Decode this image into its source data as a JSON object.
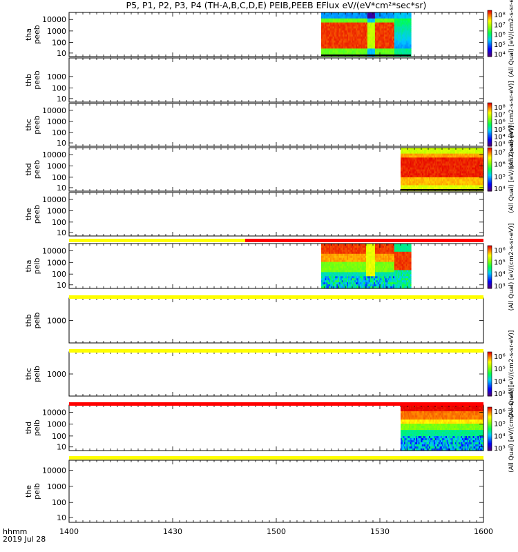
{
  "chart_data": {
    "type": "heatmap",
    "title": "P5, P1, P2, P3, P4 (TH-A,B,C,D,E) PEIB,PEEB EFlux eV/(eV*cm²*sec*sr)",
    "xlabel": "hhmm",
    "xsublabel": "2019 Jul 28",
    "x_ticks": [
      "1400",
      "1430",
      "1500",
      "1530",
      "1600"
    ],
    "x_range_minutes": [
      0,
      120
    ],
    "panels": [
      {
        "id": "tha-peeb",
        "label1": "tha",
        "label2": "peeb",
        "yticks": [
          "10",
          "100",
          "1000",
          "10000"
        ],
        "data_start_min": 73,
        "data_end_min": 99,
        "kind": "electron-a",
        "colorbar": {
          "ticks": [
            "10⁸",
            "10⁷",
            "10⁶",
            "10⁵",
            "10⁴"
          ],
          "label": "(All Qual) [eV/(cm2-s-sr-eV)]"
        }
      },
      {
        "id": "thb-peeb",
        "label1": "thb",
        "label2": "peeb",
        "yticks": [
          "10",
          "100",
          "1000"
        ],
        "data_start_min": null,
        "data_end_min": null,
        "kind": "empty",
        "colorbar": null
      },
      {
        "id": "thc-peeb",
        "label1": "thc",
        "label2": "peeb",
        "yticks": [
          "10",
          "100",
          "1000",
          "10000"
        ],
        "data_start_min": null,
        "data_end_min": null,
        "kind": "empty",
        "colorbar": {
          "ticks": [
            "10⁸",
            "10⁷",
            "10⁶",
            "10⁵",
            "10⁴",
            "10³"
          ],
          "label": "(All Qual) [eV/(cm2-s-sr-eV)]"
        }
      },
      {
        "id": "thd-peeb",
        "label1": "thd",
        "label2": "peeb",
        "yticks": [
          "10",
          "100",
          "1000",
          "10000"
        ],
        "data_start_min": 96,
        "data_end_min": 120,
        "kind": "electron-d",
        "colorbar": {
          "ticks": [
            "10⁷",
            "10⁶",
            "10⁵",
            "10⁴"
          ],
          "label": "(All Qual) [eV/(cm2-s-sr-eV)]"
        }
      },
      {
        "id": "the-peeb",
        "label1": "the",
        "label2": "peeb",
        "yticks": [
          "10",
          "100",
          "1000",
          "10000"
        ],
        "data_start_min": null,
        "data_end_min": null,
        "kind": "empty",
        "colorbar": null
      },
      {
        "id": "tha-peib",
        "label1": "tha",
        "label2": "peib",
        "yticks": [
          "10",
          "100",
          "1000",
          "10000"
        ],
        "data_start_min": 73,
        "data_end_min": 99,
        "kind": "ion-a",
        "colorbar": {
          "ticks": [
            "10⁶",
            "10⁵",
            "10⁴",
            "10³"
          ],
          "label": "(All Qual) [eV/(cm2-s-sr-eV)]"
        }
      },
      {
        "id": "thb-peib",
        "label1": "thb",
        "label2": "peib",
        "yticks": [
          "1000"
        ],
        "data_start_min": null,
        "data_end_min": null,
        "kind": "empty",
        "colorbar": null
      },
      {
        "id": "thc-peib",
        "label1": "thc",
        "label2": "peib",
        "yticks": [
          "1000"
        ],
        "data_start_min": null,
        "data_end_min": null,
        "kind": "empty",
        "colorbar": {
          "ticks": [
            "10⁶",
            "10⁵",
            "10⁴",
            "10³"
          ],
          "label": "(All Qual) [eV/(cm2-s-sr-eV)]"
        }
      },
      {
        "id": "thd-peib",
        "label1": "thd",
        "label2": "peib",
        "yticks": [
          "10",
          "100",
          "1000",
          "10000"
        ],
        "data_start_min": 96,
        "data_end_min": 120,
        "kind": "ion-d",
        "colorbar": {
          "ticks": [
            "10⁶",
            "10⁵",
            "10⁴",
            "10³"
          ],
          "label": "(All Qual) [eV/(cm2-s-sr-eV)]"
        }
      },
      {
        "id": "the-peib",
        "label1": "the",
        "label2": "peib",
        "yticks": [
          "10",
          "100",
          "1000",
          "10000"
        ],
        "data_start_min": null,
        "data_end_min": null,
        "kind": "empty",
        "colorbar": null
      }
    ],
    "status_bars": [
      {
        "after_panel": 4,
        "segments": [
          {
            "from": 0,
            "to": 51,
            "color": "#ffff00"
          },
          {
            "from": 51,
            "to": 120,
            "color": "#ff0000"
          }
        ]
      },
      {
        "after_panel": 5,
        "segments": [
          {
            "from": 0,
            "to": 120,
            "color": "#ffff00"
          }
        ]
      },
      {
        "after_panel": 6,
        "segments": [
          {
            "from": 0,
            "to": 120,
            "color": "#ffff00"
          }
        ]
      },
      {
        "after_panel": 7,
        "segments": [
          {
            "from": 0,
            "to": 120,
            "color": "#ff0000"
          }
        ]
      },
      {
        "after_panel": 8,
        "segments": [
          {
            "from": 0,
            "to": 120,
            "color": "#ffff00"
          }
        ]
      }
    ]
  }
}
